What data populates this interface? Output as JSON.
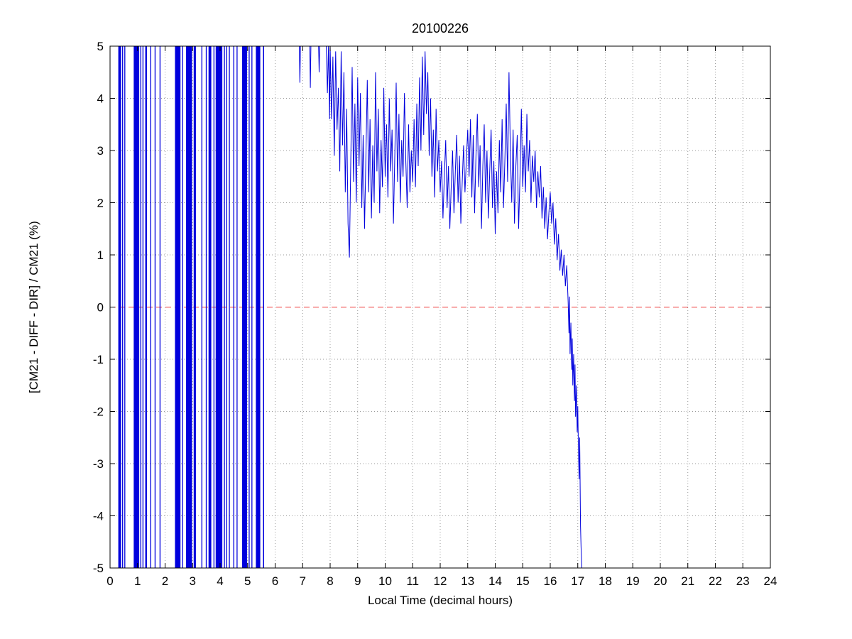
{
  "figure": {
    "background": "#ffffff"
  },
  "chart_data": {
    "type": "line",
    "title": "20100226",
    "xlabel": "Local Time (decimal hours)",
    "ylabel": "[CM21 - DIFF - DIR] / CM21 (%)",
    "xlim": [
      0,
      24
    ],
    "ylim": [
      -5,
      5
    ],
    "xtick_labels": [
      "0",
      "1",
      "2",
      "3",
      "4",
      "5",
      "6",
      "7",
      "8",
      "9",
      "10",
      "11",
      "12",
      "13",
      "14",
      "15",
      "16",
      "17",
      "18",
      "19",
      "20",
      "21",
      "22",
      "23",
      "24"
    ],
    "ytick_labels": [
      "-5",
      "-4",
      "-3",
      "-2",
      "-1",
      "0",
      "1",
      "2",
      "3",
      "4",
      "5"
    ],
    "grid": "dotted",
    "legend": "none",
    "zero_line_y": 0,
    "colors": {
      "line": "#0000dd",
      "zero_line": "#ee3333",
      "grid": "#999999",
      "axis": "#000000",
      "background": "#ffffff"
    },
    "saturated_bands": [
      [
        0.3,
        0.4
      ],
      [
        0.44,
        0.46
      ],
      [
        0.52,
        0.54
      ],
      [
        0.86,
        1.06
      ],
      [
        1.1,
        1.12
      ],
      [
        1.18,
        1.2
      ],
      [
        1.28,
        1.34
      ],
      [
        1.46,
        1.48
      ],
      [
        1.62,
        1.64
      ],
      [
        1.8,
        1.82
      ],
      [
        2.36,
        2.56
      ],
      [
        2.62,
        2.64
      ],
      [
        2.76,
        2.98
      ],
      [
        3.04,
        3.12
      ],
      [
        3.32,
        3.34
      ],
      [
        3.48,
        3.5
      ],
      [
        3.58,
        3.68
      ],
      [
        3.76,
        3.78
      ],
      [
        3.84,
        4.08
      ],
      [
        4.14,
        4.16
      ],
      [
        4.22,
        4.24
      ],
      [
        4.32,
        4.34
      ],
      [
        4.48,
        4.5
      ],
      [
        4.6,
        4.62
      ],
      [
        4.8,
        4.98
      ],
      [
        5.04,
        5.06
      ],
      [
        5.14,
        5.16
      ],
      [
        5.3,
        5.46
      ],
      [
        5.56,
        5.6
      ]
    ],
    "series": [
      {
        "name": "(CM21 - DIFF - DIR) / CM21 (%)",
        "points": [
          [
            6.88,
            5
          ],
          [
            6.9,
            4.3
          ],
          [
            6.92,
            5
          ],
          [
            6.93,
            null
          ],
          [
            7.26,
            5
          ],
          [
            7.28,
            4.2
          ],
          [
            7.3,
            5
          ],
          [
            7.31,
            null
          ],
          [
            7.58,
            5
          ],
          [
            7.6,
            4.5
          ],
          [
            7.62,
            5
          ],
          [
            7.63,
            null
          ],
          [
            7.86,
            5
          ],
          [
            7.9,
            4.1
          ],
          [
            7.94,
            5
          ],
          [
            7.98,
            3.6
          ],
          [
            8.0,
            5
          ],
          [
            8.05,
            3.6
          ],
          [
            8.1,
            4.8
          ],
          [
            8.15,
            2.9
          ],
          [
            8.2,
            4.9
          ],
          [
            8.25,
            3.4
          ],
          [
            8.3,
            4.2
          ],
          [
            8.35,
            2.6
          ],
          [
            8.4,
            4.9
          ],
          [
            8.45,
            3.1
          ],
          [
            8.5,
            4.5
          ],
          [
            8.55,
            2.2
          ],
          [
            8.6,
            3.8
          ],
          [
            8.65,
            1.6
          ],
          [
            8.7,
            0.95
          ],
          [
            8.75,
            2.8
          ],
          [
            8.8,
            4.6
          ],
          [
            8.85,
            2.4
          ],
          [
            8.9,
            3.9
          ],
          [
            8.95,
            2.0
          ],
          [
            9.0,
            4.4
          ],
          [
            9.05,
            2.7
          ],
          [
            9.1,
            4.1
          ],
          [
            9.15,
            1.9
          ],
          [
            9.2,
            3.3
          ],
          [
            9.25,
            1.5
          ],
          [
            9.3,
            2.9
          ],
          [
            9.35,
            4.35
          ],
          [
            9.4,
            2.2
          ],
          [
            9.45,
            3.6
          ],
          [
            9.5,
            1.7
          ],
          [
            9.55,
            3.1
          ],
          [
            9.6,
            2.0
          ],
          [
            9.65,
            4.5
          ],
          [
            9.7,
            2.6
          ],
          [
            9.75,
            3.8
          ],
          [
            9.8,
            1.8
          ],
          [
            9.85,
            3.2
          ],
          [
            9.9,
            2.3
          ],
          [
            9.95,
            4.2
          ],
          [
            10.0,
            2.5
          ],
          [
            10.05,
            3.5
          ],
          [
            10.1,
            2.1
          ],
          [
            10.15,
            4.0
          ],
          [
            10.2,
            2.6
          ],
          [
            10.25,
            3.4
          ],
          [
            10.3,
            1.6
          ],
          [
            10.35,
            2.9
          ],
          [
            10.4,
            4.3
          ],
          [
            10.45,
            2.4
          ],
          [
            10.5,
            3.7
          ],
          [
            10.55,
            2.0
          ],
          [
            10.6,
            3.2
          ],
          [
            10.65,
            2.5
          ],
          [
            10.7,
            4.1
          ],
          [
            10.75,
            2.8
          ],
          [
            10.8,
            1.9
          ],
          [
            10.85,
            3.5
          ],
          [
            10.9,
            2.2
          ],
          [
            10.95,
            3.0
          ],
          [
            11.0,
            2.4
          ],
          [
            11.05,
            3.6
          ],
          [
            11.1,
            2.3
          ],
          [
            11.15,
            3.9
          ],
          [
            11.2,
            2.7
          ],
          [
            11.25,
            4.4
          ],
          [
            11.3,
            3.0
          ],
          [
            11.35,
            4.8
          ],
          [
            11.4,
            3.3
          ],
          [
            11.45,
            4.9
          ],
          [
            11.5,
            3.7
          ],
          [
            11.55,
            4.5
          ],
          [
            11.6,
            2.9
          ],
          [
            11.65,
            4.0
          ],
          [
            11.7,
            2.5
          ],
          [
            11.75,
            3.4
          ],
          [
            11.8,
            2.1
          ],
          [
            11.85,
            3.8
          ],
          [
            11.9,
            2.6
          ],
          [
            11.95,
            3.2
          ],
          [
            12.0,
            2.2
          ],
          [
            12.05,
            2.8
          ],
          [
            12.1,
            1.7
          ],
          [
            12.15,
            2.5
          ],
          [
            12.2,
            3.2
          ],
          [
            12.25,
            1.9
          ],
          [
            12.3,
            2.7
          ],
          [
            12.35,
            1.5
          ],
          [
            12.4,
            2.3
          ],
          [
            12.45,
            3.0
          ],
          [
            12.5,
            1.8
          ],
          [
            12.55,
            2.6
          ],
          [
            12.6,
            3.3
          ],
          [
            12.65,
            2.0
          ],
          [
            12.7,
            2.9
          ],
          [
            12.75,
            1.6
          ],
          [
            12.8,
            2.4
          ],
          [
            12.85,
            3.1
          ],
          [
            12.9,
            2.2
          ],
          [
            12.95,
            2.8
          ],
          [
            13.0,
            3.4
          ],
          [
            13.05,
            2.5
          ],
          [
            13.1,
            3.6
          ],
          [
            13.15,
            2.1
          ],
          [
            13.2,
            3.3
          ],
          [
            13.25,
            1.8
          ],
          [
            13.3,
            2.9
          ],
          [
            13.35,
            3.7
          ],
          [
            13.4,
            2.3
          ],
          [
            13.45,
            3.1
          ],
          [
            13.5,
            1.5
          ],
          [
            13.55,
            2.7
          ],
          [
            13.6,
            3.5
          ],
          [
            13.65,
            2.0
          ],
          [
            13.7,
            3.0
          ],
          [
            13.75,
            1.7
          ],
          [
            13.8,
            2.6
          ],
          [
            13.85,
            3.4
          ],
          [
            13.9,
            1.9
          ],
          [
            13.95,
            2.8
          ],
          [
            14.0,
            1.4
          ],
          [
            14.05,
            2.6
          ],
          [
            14.1,
            1.8
          ],
          [
            14.15,
            3.2
          ],
          [
            14.2,
            2.2
          ],
          [
            14.25,
            3.6
          ],
          [
            14.3,
            1.9
          ],
          [
            14.35,
            2.8
          ],
          [
            14.4,
            3.9
          ],
          [
            14.45,
            2.4
          ],
          [
            14.5,
            4.5
          ],
          [
            14.55,
            3.0
          ],
          [
            14.6,
            2.0
          ],
          [
            14.65,
            3.4
          ],
          [
            14.7,
            1.6
          ],
          [
            14.75,
            2.7
          ],
          [
            14.8,
            3.3
          ],
          [
            14.85,
            1.5
          ],
          [
            14.9,
            2.5
          ],
          [
            14.95,
            3.8
          ],
          [
            15.0,
            2.3
          ],
          [
            15.05,
            3.1
          ],
          [
            15.1,
            2.2
          ],
          [
            15.15,
            3.7
          ],
          [
            15.2,
            2.6
          ],
          [
            15.25,
            3.2
          ],
          [
            15.3,
            2.0
          ],
          [
            15.35,
            2.9
          ],
          [
            15.4,
            2.4
          ],
          [
            15.45,
            3.0
          ],
          [
            15.5,
            1.9
          ],
          [
            15.55,
            2.6
          ],
          [
            15.6,
            2.1
          ],
          [
            15.65,
            2.7
          ],
          [
            15.7,
            1.7
          ],
          [
            15.75,
            2.3
          ],
          [
            15.8,
            1.5
          ],
          [
            15.85,
            2.1
          ],
          [
            15.9,
            1.3
          ],
          [
            15.95,
            1.8
          ],
          [
            16.0,
            2.2
          ],
          [
            16.05,
            1.6
          ],
          [
            16.1,
            2.0
          ],
          [
            16.15,
            1.2
          ],
          [
            16.2,
            1.7
          ],
          [
            16.25,
            0.9
          ],
          [
            16.3,
            1.4
          ],
          [
            16.35,
            0.7
          ],
          [
            16.4,
            1.1
          ],
          [
            16.45,
            0.6
          ],
          [
            16.5,
            1.0
          ],
          [
            16.55,
            0.4
          ],
          [
            16.6,
            0.8
          ],
          [
            16.65,
            0.1
          ],
          [
            16.68,
            -0.5
          ],
          [
            16.7,
            0.2
          ],
          [
            16.72,
            -0.9
          ],
          [
            16.75,
            -0.3
          ],
          [
            16.78,
            -1.2
          ],
          [
            16.8,
            -0.6
          ],
          [
            16.82,
            -1.5
          ],
          [
            16.85,
            -0.9
          ],
          [
            16.88,
            -1.8
          ],
          [
            16.9,
            -1.1
          ],
          [
            16.92,
            -2.1
          ],
          [
            16.95,
            -1.5
          ],
          [
            16.98,
            -2.4
          ],
          [
            17.0,
            -1.9
          ],
          [
            17.02,
            -2.6
          ],
          [
            17.05,
            -3.3
          ],
          [
            17.07,
            -2.5
          ],
          [
            17.1,
            -4.2
          ],
          [
            17.12,
            -4.6
          ],
          [
            17.15,
            -5.0
          ]
        ]
      }
    ]
  }
}
